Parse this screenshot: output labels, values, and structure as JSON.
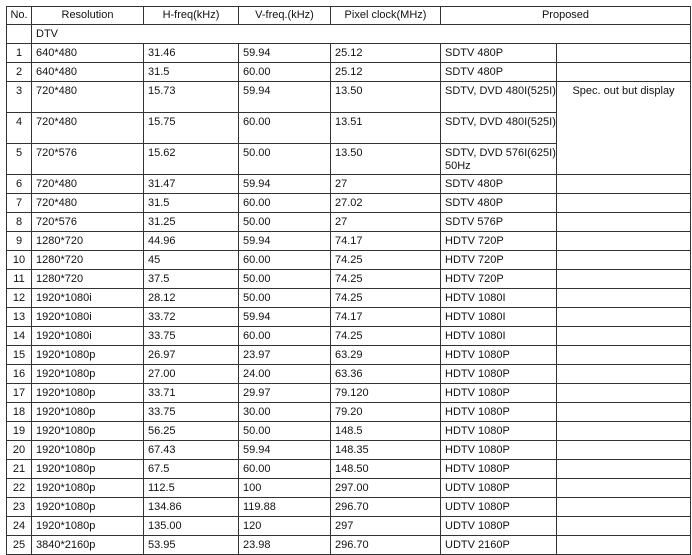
{
  "headers": [
    "No.",
    "Resolution",
    "H-freq(kHz)",
    "V-freq.(kHz)",
    "Pixel clock(MHz)",
    "Proposed"
  ],
  "section_label": "DTV",
  "note": "Spec. out but display",
  "rows": [
    {
      "no": "1",
      "res": "640*480",
      "h": "31.46",
      "v": "59.94",
      "clk": "25.12",
      "prop": "SDTV 480P"
    },
    {
      "no": "2",
      "res": "640*480",
      "h": "31.5",
      "v": "60.00",
      "clk": "25.12",
      "prop": "SDTV 480P"
    },
    {
      "no": "3",
      "res": "720*480",
      "h": "15.73",
      "v": "59.94",
      "clk": "13.50",
      "prop": "SDTV, DVD 480I(525I)"
    },
    {
      "no": "4",
      "res": "720*480",
      "h": "15.75",
      "v": "60.00",
      "clk": "13.51",
      "prop": "SDTV, DVD 480I(525I)"
    },
    {
      "no": "5",
      "res": "720*576",
      "h": "15.62",
      "v": "50.00",
      "clk": "13.50",
      "prop": "SDTV, DVD 576I(625I) 50Hz"
    },
    {
      "no": "6",
      "res": "720*480",
      "h": "31.47",
      "v": "59.94",
      "clk": "27",
      "prop": "SDTV 480P"
    },
    {
      "no": "7",
      "res": "720*480",
      "h": "31.5",
      "v": "60.00",
      "clk": "27.02",
      "prop": "SDTV 480P"
    },
    {
      "no": "8",
      "res": "720*576",
      "h": "31.25",
      "v": "50.00",
      "clk": "27",
      "prop": "SDTV 576P"
    },
    {
      "no": "9",
      "res": "1280*720",
      "h": "44.96",
      "v": "59.94",
      "clk": "74.17",
      "prop": "HDTV 720P"
    },
    {
      "no": "10",
      "res": "1280*720",
      "h": "45",
      "v": "60.00",
      "clk": "74.25",
      "prop": "HDTV 720P"
    },
    {
      "no": "11",
      "res": "1280*720",
      "h": "37.5",
      "v": "50.00",
      "clk": "74.25",
      "prop": "HDTV 720P"
    },
    {
      "no": "12",
      "res": "1920*1080i",
      "h": "28.12",
      "v": "50.00",
      "clk": "74.25",
      "prop": "HDTV 1080I"
    },
    {
      "no": "13",
      "res": "1920*1080i",
      "h": "33.72",
      "v": "59.94",
      "clk": "74.17",
      "prop": "HDTV 1080I"
    },
    {
      "no": "14",
      "res": "1920*1080i",
      "h": "33.75",
      "v": "60.00",
      "clk": "74.25",
      "prop": "HDTV 1080I"
    },
    {
      "no": "15",
      "res": "1920*1080p",
      "h": "26.97",
      "v": "23.97",
      "clk": "63.29",
      "prop": "HDTV 1080P"
    },
    {
      "no": "16",
      "res": "1920*1080p",
      "h": "27.00",
      "v": "24.00",
      "clk": "63.36",
      "prop": "HDTV 1080P"
    },
    {
      "no": "17",
      "res": "1920*1080p",
      "h": "33.71",
      "v": "29.97",
      "clk": "79.120",
      "prop": "HDTV 1080P"
    },
    {
      "no": "18",
      "res": "1920*1080p",
      "h": "33.75",
      "v": "30.00",
      "clk": "79.20",
      "prop": "HDTV 1080P"
    },
    {
      "no": "19",
      "res": "1920*1080p",
      "h": "56.25",
      "v": "50.00",
      "clk": "148.5",
      "prop": "HDTV 1080P"
    },
    {
      "no": "20",
      "res": "1920*1080p",
      "h": "67.43",
      "v": "59.94",
      "clk": "148.35",
      "prop": "HDTV 1080P"
    },
    {
      "no": "21",
      "res": "1920*1080p",
      "h": "67.5",
      "v": "60.00",
      "clk": "148.50",
      "prop": "HDTV 1080P"
    },
    {
      "no": "22",
      "res": "1920*1080p",
      "h": "112.5",
      "v": "100",
      "clk": "297.00",
      "prop": "UDTV 1080P"
    },
    {
      "no": "23",
      "res": "1920*1080p",
      "h": "134.86",
      "v": "119.88",
      "clk": "296.70",
      "prop": "UDTV 1080P"
    },
    {
      "no": "24",
      "res": "1920*1080p",
      "h": "135.00",
      "v": "120",
      "clk": "297",
      "prop": "UDTV 1080P"
    },
    {
      "no": "25",
      "res": "3840*2160p",
      "h": "53.95",
      "v": "23.98",
      "clk": "296.70",
      "prop": "UDTV 2160P"
    }
  ]
}
